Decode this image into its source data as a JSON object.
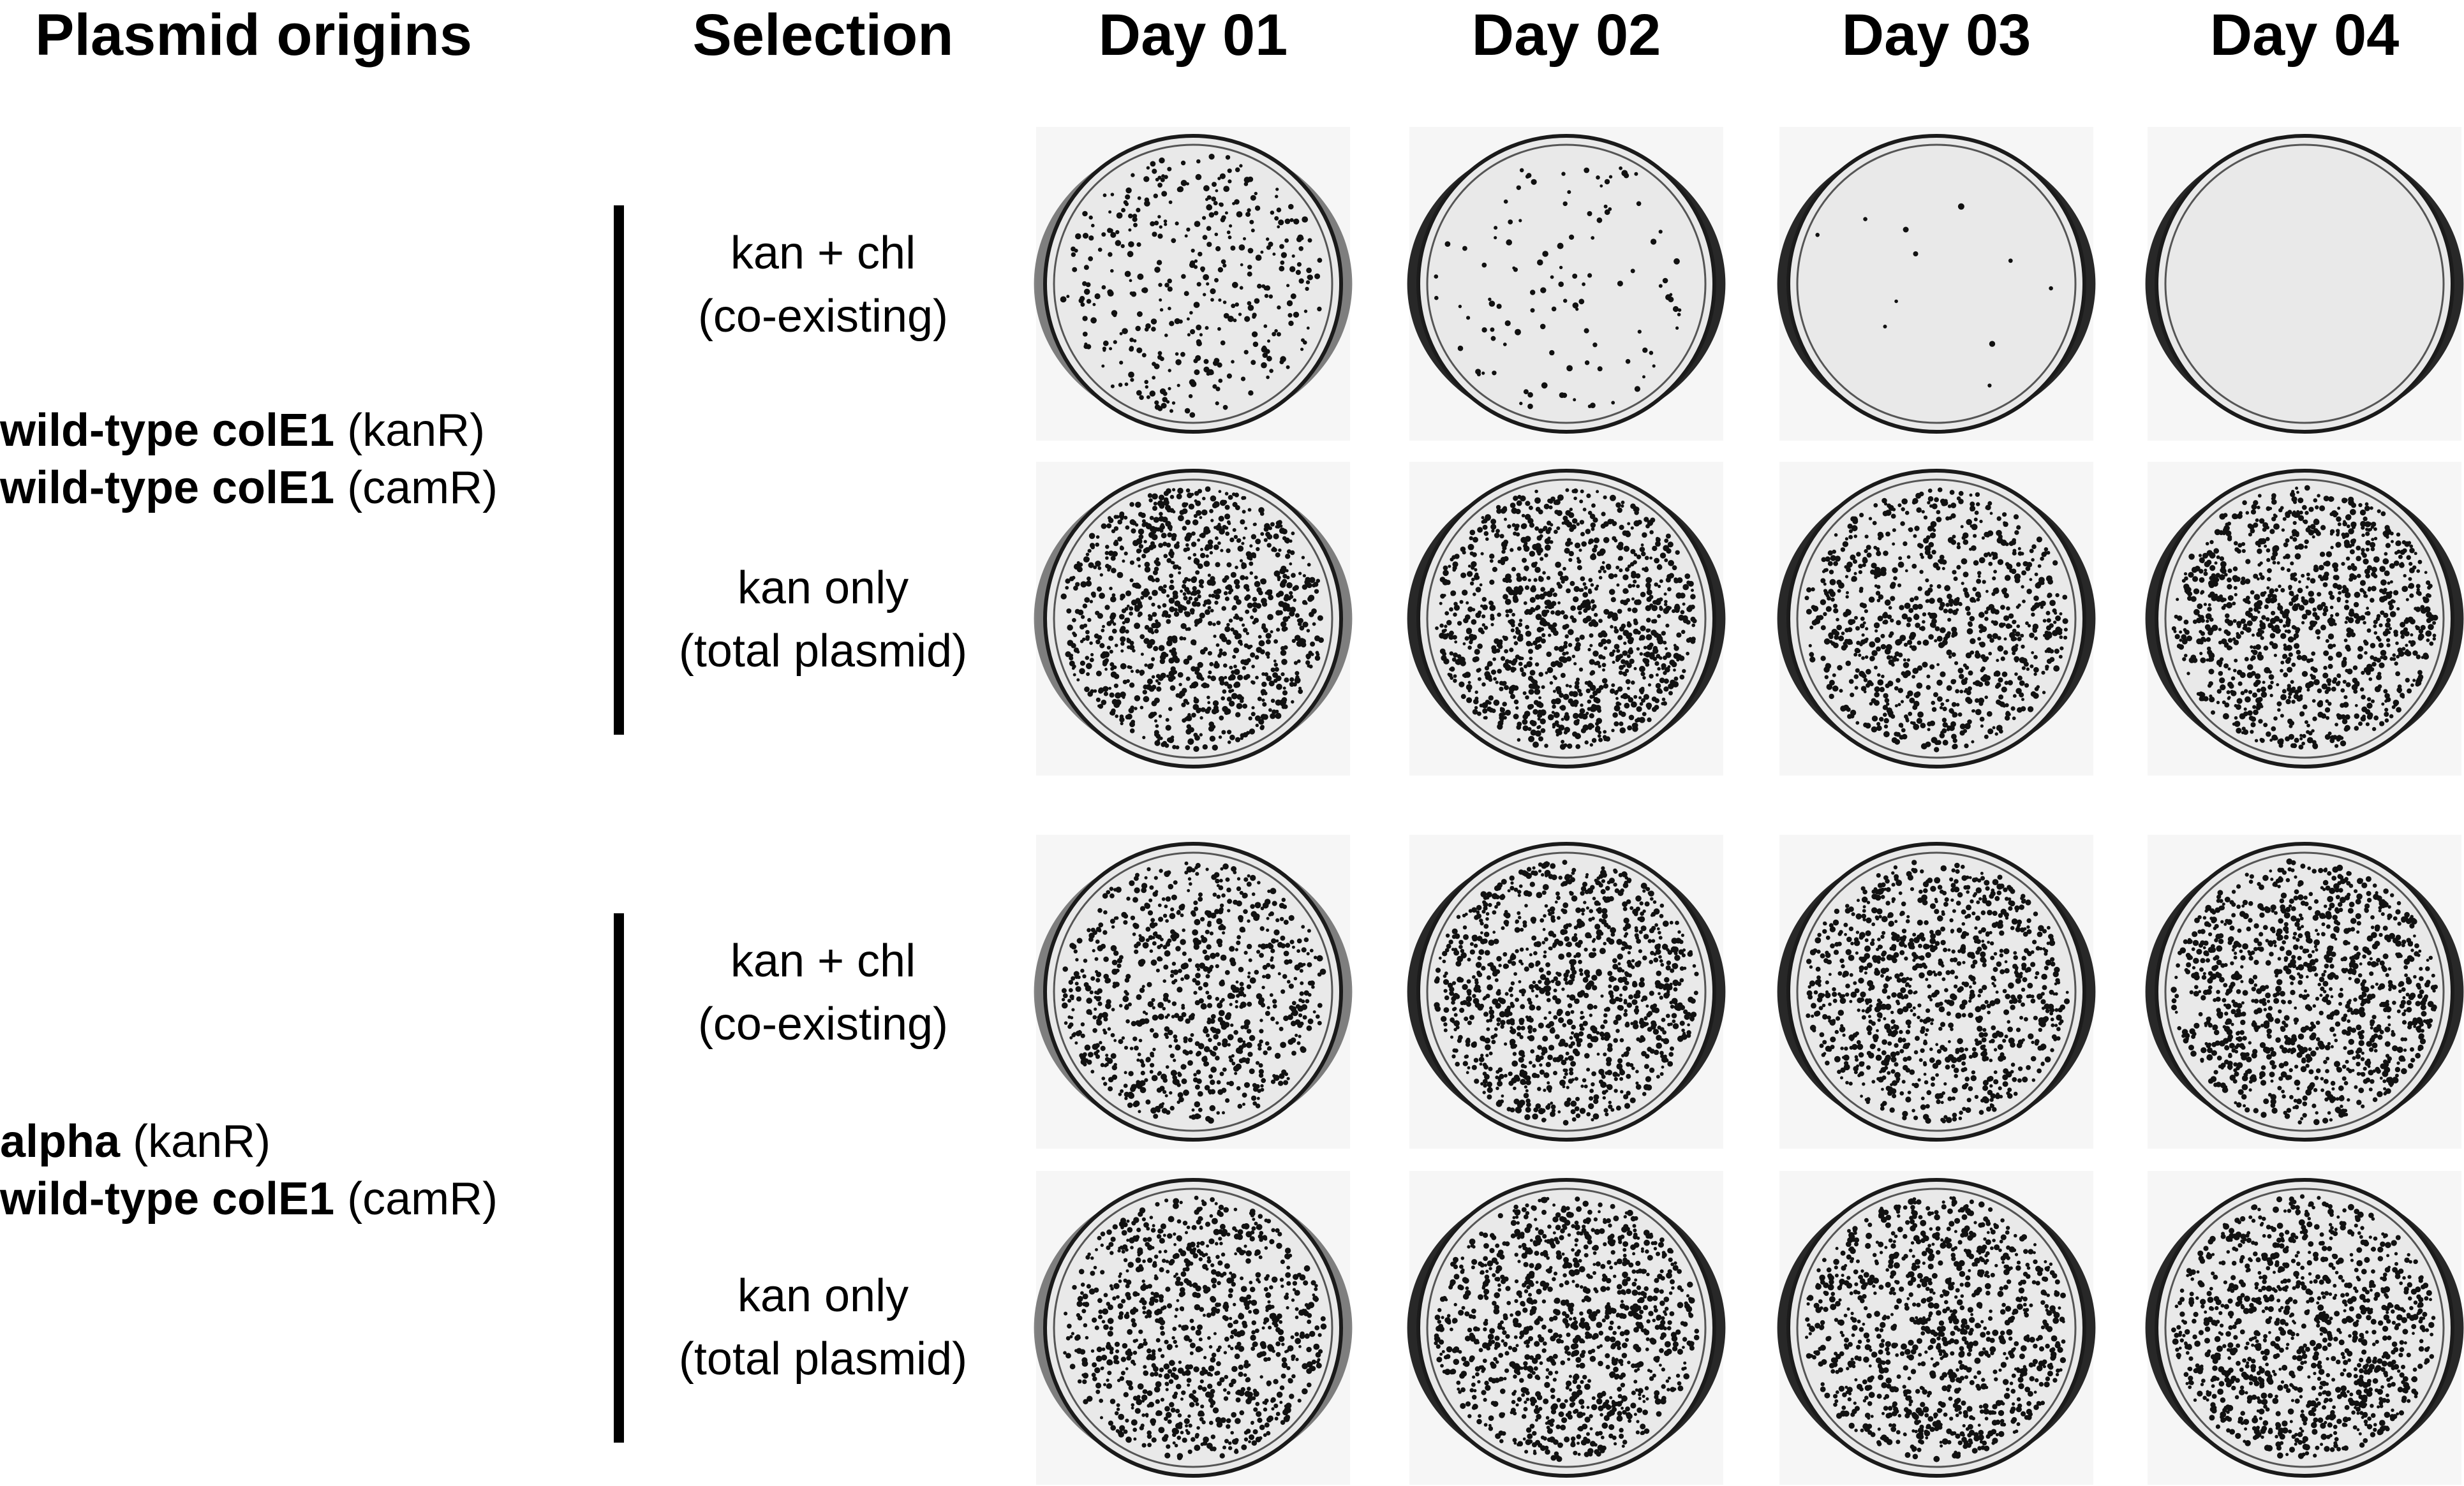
{
  "headers": {
    "plasmid_origins": "Plasmid origins",
    "selection": "Selection",
    "days": [
      "Day 01",
      "Day 02",
      "Day 03",
      "Day 04"
    ]
  },
  "groups": [
    {
      "line1_bold": "wild-type colE1",
      "line1_rest": " (kanR)",
      "line2_bold": "wild-type colE1",
      "line2_rest": " (camR)",
      "rows": [
        {
          "line1": "kan + chl",
          "line2": "(co-existing)"
        },
        {
          "line1": "kan only",
          "line2": "(total plasmid)"
        }
      ]
    },
    {
      "line1_bold": "alpha",
      "line1_rest": " (kanR)",
      "line2_bold": "wild-type colE1",
      "line2_rest": " (camR)",
      "rows": [
        {
          "line1": "kan + chl",
          "line2": "(co-existing)"
        },
        {
          "line1": "kan only",
          "line2": "(total plasmid)"
        }
      ]
    }
  ],
  "plates": {
    "colony_density": [
      [
        0.35,
        0.1,
        0.01,
        0.0
      ],
      [
        0.95,
        1.0,
        0.8,
        1.0
      ],
      [
        0.75,
        1.0,
        0.9,
        1.0
      ],
      [
        0.85,
        1.0,
        0.95,
        1.0
      ]
    ],
    "colors": {
      "agar": "#e9e9e9",
      "rim": "#1a1a1a",
      "colony": "#111111"
    }
  }
}
